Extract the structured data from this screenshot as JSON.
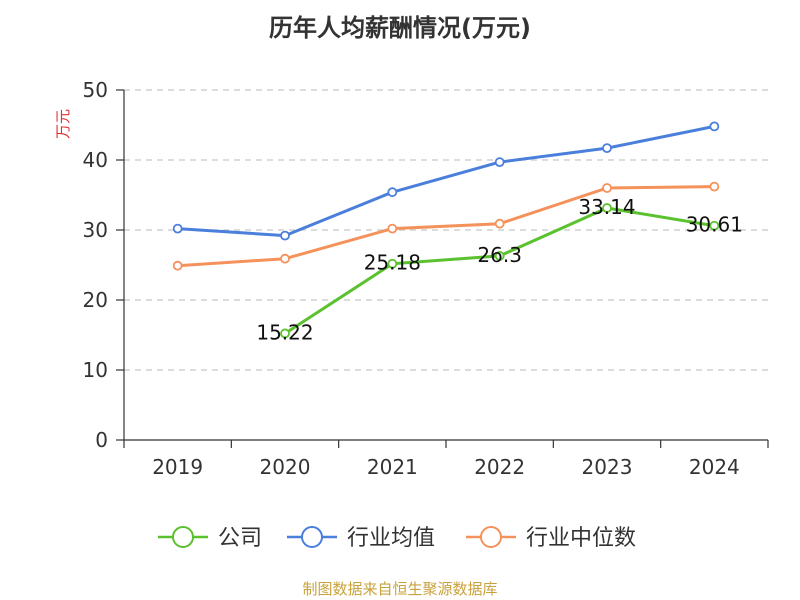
{
  "chart_data": {
    "type": "line",
    "title": "历年人均薪酬情况(万元)",
    "ylabel": "万元",
    "xlabel": "",
    "ylim": [
      0,
      50
    ],
    "yticks": [
      0,
      10,
      20,
      30,
      40,
      50
    ],
    "grid": true,
    "legend_position": "bottom",
    "categories": [
      "2019",
      "2020",
      "2021",
      "2022",
      "2023",
      "2024"
    ],
    "series": [
      {
        "name": "公司",
        "color": "#5cc12f",
        "values": [
          null,
          15.22,
          25.18,
          26.3,
          33.14,
          30.61
        ],
        "labels": [
          "",
          "15.22",
          "25.18",
          "26.3",
          "33.14",
          "30.61"
        ]
      },
      {
        "name": "行业均值",
        "color": "#4a7fdc",
        "values": [
          30.2,
          29.2,
          35.4,
          39.7,
          41.7,
          44.8
        ]
      },
      {
        "name": "行业中位数",
        "color": "#f5915a",
        "values": [
          24.9,
          25.9,
          30.2,
          30.9,
          36.0,
          36.2
        ]
      }
    ]
  },
  "source_note": "制图数据来自恒生聚源数据库"
}
